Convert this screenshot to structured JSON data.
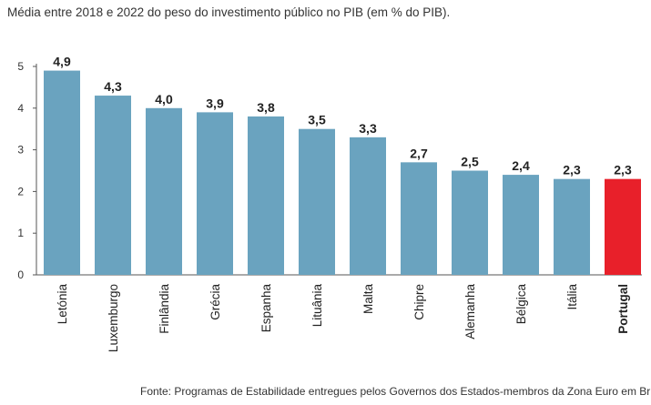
{
  "chart_data": {
    "type": "bar",
    "title": "Média entre 2018 e 2022 do peso do investimento público no PIB (em % do PIB).",
    "source": "Fonte: Programas de Estabilidade entregues pelos Governos dos Estados-membros da Zona Euro em Bru",
    "categories": [
      "Letónia",
      "Luxemburgo",
      "Finlândia",
      "Grécia",
      "Espanha",
      "Lituânia",
      "Malta",
      "Chipre",
      "Alemanha",
      "Bélgica",
      "Itália",
      "Portugal"
    ],
    "values": [
      4.9,
      4.3,
      4.0,
      3.9,
      3.8,
      3.5,
      3.3,
      2.7,
      2.5,
      2.4,
      2.3,
      2.3
    ],
    "value_labels": [
      "4,9",
      "4,3",
      "4,0",
      "3,9",
      "3,8",
      "3,5",
      "3,3",
      "2,7",
      "2,5",
      "2,4",
      "2,3",
      "2,3"
    ],
    "ylim": [
      0,
      5
    ],
    "yticks": [
      "0",
      "1",
      "2",
      "3",
      "4",
      "5"
    ],
    "highlight_category": "Portugal",
    "colors": {
      "bar": "#6aa3bf",
      "highlight": "#e8202a",
      "axis": "#555555"
    },
    "grid": false,
    "legend": "none"
  }
}
